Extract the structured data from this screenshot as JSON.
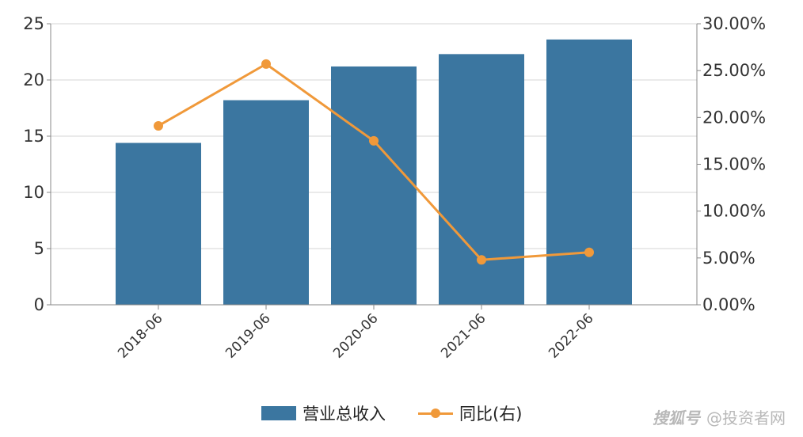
{
  "chart_data": {
    "type": "bar",
    "categories": [
      "2018-06",
      "2019-06",
      "2020-06",
      "2021-06",
      "2022-06"
    ],
    "series": [
      {
        "name": "营业总收入",
        "type": "bar",
        "axis": "left",
        "color": "#3b76a0",
        "values": [
          14.4,
          18.2,
          21.2,
          22.3,
          23.6
        ]
      },
      {
        "name": "同比(右)",
        "type": "line",
        "axis": "right",
        "color": "#f0993a",
        "values": [
          19.1,
          25.7,
          17.5,
          4.8,
          5.6
        ]
      }
    ],
    "left_axis": {
      "ylim": [
        0,
        25
      ],
      "ticks": [
        "0",
        "5",
        "10",
        "15",
        "20",
        "25"
      ]
    },
    "right_axis": {
      "ylim": [
        0,
        30
      ],
      "ticks": [
        "0.00%",
        "5.00%",
        "10.00%",
        "15.00%",
        "20.00%",
        "25.00%",
        "30.00%"
      ]
    },
    "grid": true,
    "legend_position": "bottom-center"
  },
  "legend": {
    "bar_label": "营业总收入",
    "line_label": "同比(右)"
  },
  "watermark": {
    "logo": "搜狐号",
    "text": "@投资者网"
  }
}
